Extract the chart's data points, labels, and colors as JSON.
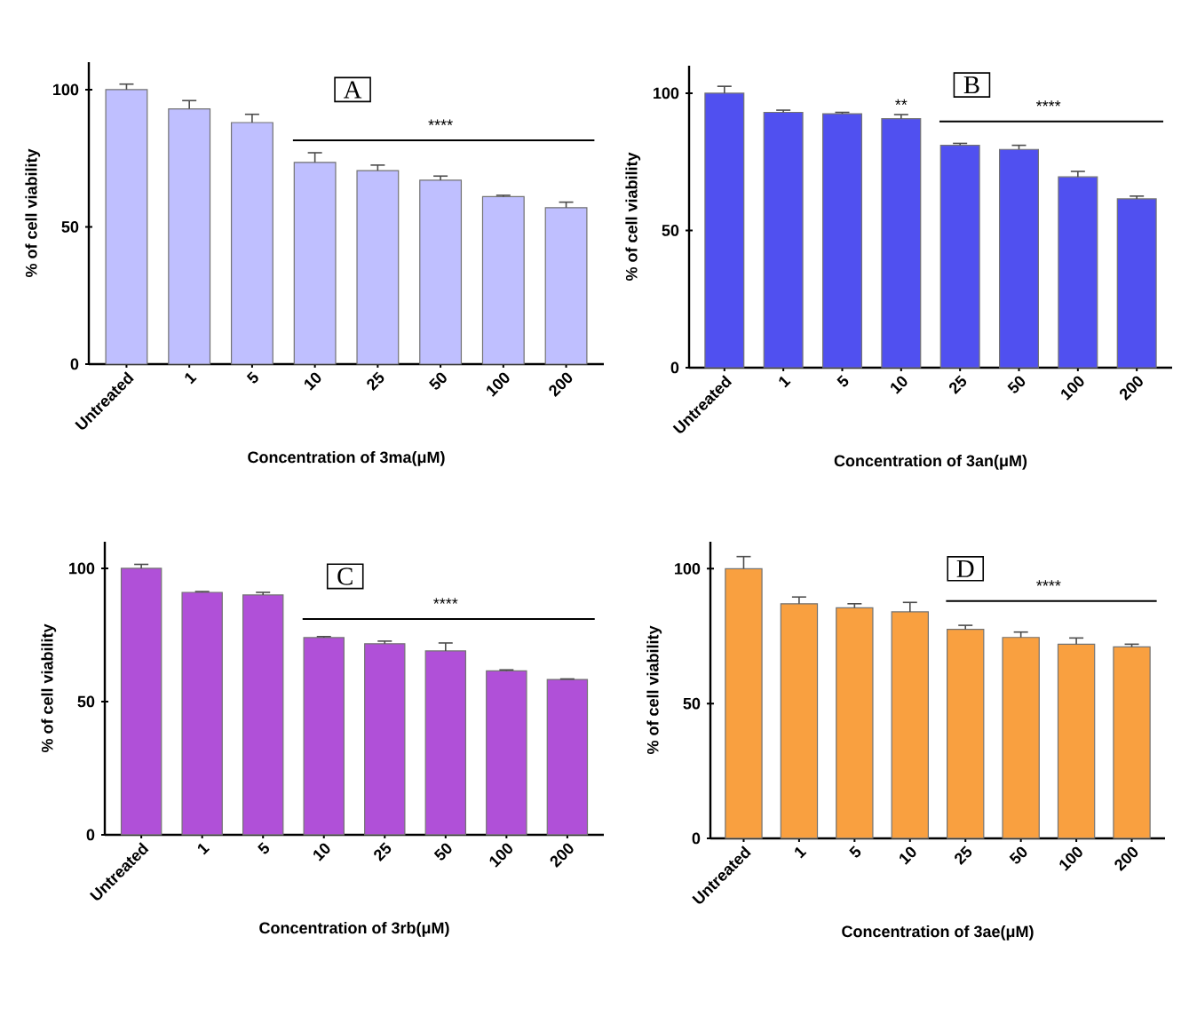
{
  "chart_data": [
    {
      "type": "bar",
      "title": "A",
      "xlabel": "Concentration of 3ma(μM)",
      "ylabel": "% of cell viability",
      "categories": [
        "Untreated",
        "1",
        "5",
        "10",
        "25",
        "50",
        "100",
        "200"
      ],
      "color": "#bfbfff",
      "values": [
        100,
        93,
        88,
        73.5,
        70.5,
        67,
        61,
        57
      ],
      "errors": [
        2,
        3,
        3,
        3.5,
        2,
        1.5,
        0.5,
        2
      ],
      "ylim": [
        0,
        110
      ],
      "yticks": [
        0,
        50,
        100
      ],
      "annotations": [
        "****"
      ]
    },
    {
      "type": "bar",
      "title": "B",
      "xlabel": "Concentration of 3an(μM)",
      "ylabel": "% of cell viability",
      "categories": [
        "Untreated",
        "1",
        "5",
        "10",
        "25",
        "50",
        "100",
        "200"
      ],
      "color": "#5050f0",
      "values": [
        100,
        93,
        92.5,
        90.7,
        81,
        79.5,
        69.5,
        61.5
      ],
      "errors": [
        2.5,
        0.8,
        0.5,
        1.5,
        0.7,
        1.5,
        2,
        1
      ],
      "ylim": [
        0,
        110
      ],
      "yticks": [
        0,
        50,
        100
      ],
      "annotations": [
        {
          "text": "**",
          "x": "10",
          "y": 93
        },
        "****"
      ]
    },
    {
      "type": "bar",
      "title": "C",
      "xlabel": "Concentration of 3rb(μM)",
      "ylabel": "% of cell viability",
      "categories": [
        "Untreated",
        "1",
        "5",
        "10",
        "25",
        "50",
        "100",
        "200"
      ],
      "color": "#b050d8",
      "values": [
        100,
        91,
        90,
        74,
        71.7,
        69,
        61.5,
        58.3
      ],
      "errors": [
        1.5,
        0.3,
        1,
        0.4,
        1,
        3,
        0.4,
        0.2
      ],
      "ylim": [
        0,
        110
      ],
      "yticks": [
        0,
        50,
        100
      ],
      "annotations": [
        "****"
      ]
    },
    {
      "type": "bar",
      "title": "D",
      "xlabel": "Concentration of 3ae(μM)",
      "ylabel": "% of cell viability",
      "categories": [
        "Untreated",
        "1",
        "5",
        "10",
        "25",
        "50",
        "100",
        "200"
      ],
      "color": "#f9a040",
      "values": [
        100,
        87,
        85.5,
        84,
        77.5,
        74.5,
        72,
        71
      ],
      "errors": [
        4.5,
        2.5,
        1.5,
        3.5,
        1.5,
        2,
        2.3,
        1
      ],
      "ylim": [
        0,
        110
      ],
      "yticks": [
        0,
        50,
        100
      ],
      "annotations": [
        "****"
      ]
    }
  ]
}
